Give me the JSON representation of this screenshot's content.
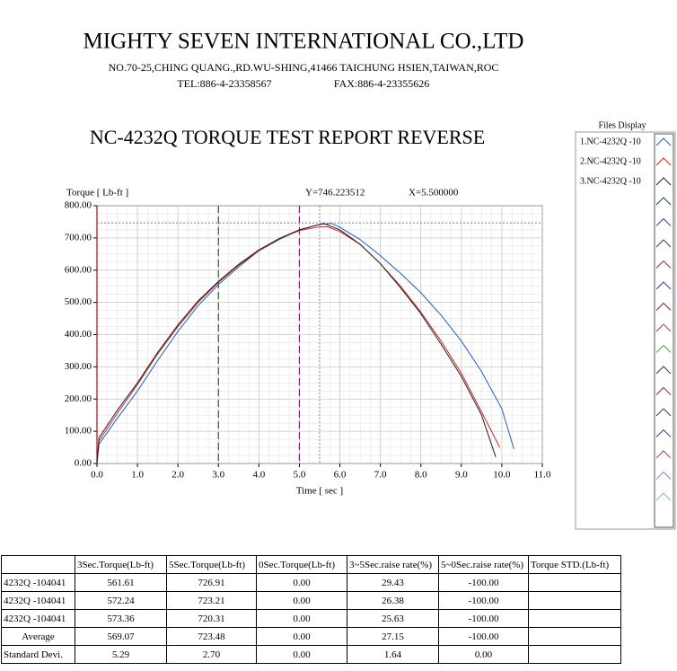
{
  "header": {
    "company": "MIGHTY SEVEN INTERNATIONAL CO.,LTD",
    "address": "NO.70-25,CHING QUANG.,RD.WU-SHING,41466 TAICHUNG HSIEN,TAIWAN,ROC",
    "tel": "TEL:886-4-23358567",
    "fax": "FAX:886-4-23355626",
    "report_title": "NC-4232Q TORQUE TEST REPORT REVERSE"
  },
  "chart_data": {
    "type": "line",
    "y_label": "Torque [ Lb-ft ]",
    "x_label": "Time [ sec ]",
    "cursor": {
      "x": 5.5,
      "y": 746.223512,
      "y_text": "Y=746.223512",
      "x_text": "X=5.500000"
    },
    "markers": [
      {
        "x": 0,
        "color": "#c00000"
      },
      {
        "x": 3,
        "color": "#2e5e2e"
      },
      {
        "x": 5,
        "color": "#a000a0"
      }
    ],
    "xlim": [
      0,
      11
    ],
    "ylim": [
      0,
      800
    ],
    "grid": true,
    "xticks": [
      {
        "value": 0,
        "label": "0.0"
      },
      {
        "value": 1,
        "label": "1.0"
      },
      {
        "value": 2,
        "label": "2.0"
      },
      {
        "value": 3,
        "label": "3.0"
      },
      {
        "value": 4,
        "label": "4.0"
      },
      {
        "value": 5,
        "label": "5.0"
      },
      {
        "value": 6,
        "label": "6.0"
      },
      {
        "value": 7,
        "label": "7.0"
      },
      {
        "value": 8,
        "label": "8.0"
      },
      {
        "value": 9,
        "label": "9.0"
      },
      {
        "value": 10,
        "label": "10.0"
      },
      {
        "value": 11,
        "label": "11.0"
      }
    ],
    "yticks": [
      {
        "value": 0,
        "label": "0.00"
      },
      {
        "value": 100,
        "label": "100.00"
      },
      {
        "value": 200,
        "label": "200.00"
      },
      {
        "value": 300,
        "label": "300.00"
      },
      {
        "value": 400,
        "label": "400.00"
      },
      {
        "value": 500,
        "label": "500.00"
      },
      {
        "value": 600,
        "label": "600.00"
      },
      {
        "value": 700,
        "label": "700.00"
      },
      {
        "value": 800,
        "label": "800.00"
      }
    ],
    "series": [
      {
        "name": "1.NC-4232Q -10",
        "color": "#1f5fbf",
        "x": [
          0,
          0.05,
          0.5,
          1,
          1.5,
          2,
          2.5,
          3,
          3.5,
          4,
          4.5,
          5,
          5.5,
          5.8,
          6,
          6.5,
          7,
          7.5,
          8,
          8.5,
          9,
          9.5,
          10,
          10.3
        ],
        "values": [
          0,
          60,
          140,
          225,
          320,
          410,
          490,
          555,
          610,
          660,
          695,
          725,
          742,
          745,
          733,
          695,
          645,
          590,
          530,
          460,
          380,
          285,
          170,
          45
        ]
      },
      {
        "name": "2.NC-4232Q -10",
        "color": "#d02020",
        "x": [
          0,
          0.05,
          0.5,
          1,
          1.5,
          2,
          2.5,
          3,
          3.5,
          4,
          4.5,
          5,
          5.5,
          5.7,
          6,
          6.5,
          7,
          7.5,
          8,
          8.5,
          9,
          9.5,
          9.95
        ],
        "values": [
          0,
          70,
          155,
          245,
          340,
          425,
          500,
          562,
          615,
          660,
          697,
          723,
          735,
          734,
          720,
          680,
          620,
          550,
          470,
          380,
          280,
          160,
          50
        ]
      },
      {
        "name": "3.NC-4232Q -10",
        "color": "#202020",
        "x": [
          0,
          0.05,
          0.5,
          1,
          1.5,
          2,
          2.5,
          3,
          3.5,
          4,
          4.5,
          5,
          5.5,
          5.6,
          6,
          6.5,
          7,
          7.5,
          8,
          8.5,
          9,
          9.5,
          9.85
        ],
        "values": [
          0,
          80,
          165,
          250,
          345,
          430,
          505,
          565,
          618,
          663,
          698,
          725,
          742,
          745,
          725,
          680,
          620,
          545,
          465,
          370,
          270,
          150,
          20
        ]
      }
    ]
  },
  "table": {
    "headers": [
      "3Sec.Torque(Lb-ft)",
      "5Sec.Torque(Lb-ft)",
      "0Sec.Torque(Lb-ft)",
      "3~5Sec.raise rate(%)",
      "5~0Sec.raise rate(%)",
      "Torque STD.(Lb-ft)"
    ],
    "rows": [
      [
        "4232Q -104041",
        "561.61",
        "726.91",
        "0.00",
        "29.43",
        "-100.00"
      ],
      [
        "4232Q -104041",
        "572.24",
        "723.21",
        "0.00",
        "26.38",
        "-100.00"
      ],
      [
        "4232Q -104041",
        "573.36",
        "720.31",
        "0.00",
        "25.63",
        "-100.00"
      ],
      [
        "Average",
        "569.07",
        "723.48",
        "0.00",
        "27.15",
        "-100.00"
      ]
    ],
    "std_row": [
      "Standard Devi.",
      "5.29",
      "2.70",
      "0.00",
      "1.64",
      "0.00"
    ]
  },
  "files_display": {
    "title": "Files Display"
  }
}
